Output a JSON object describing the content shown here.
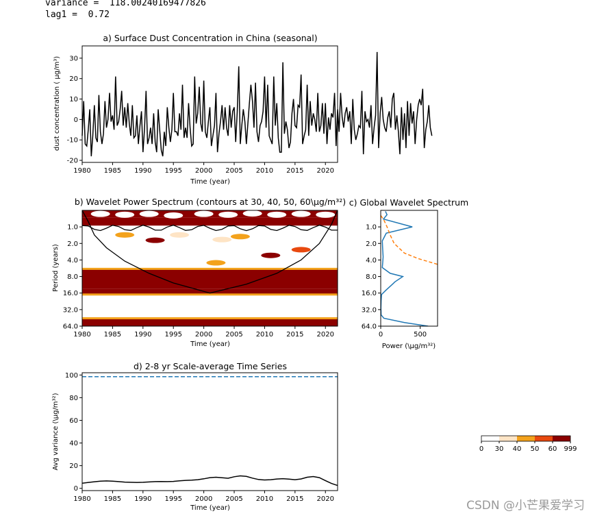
{
  "console": {
    "variance_line": "variance =  118.00240169477826",
    "lag1_line": "lag1 =  0.72"
  },
  "watermark": "CSDN @小芒果爱学习",
  "colors": {
    "line": "#000000",
    "blue": "#1f77b4",
    "orange": "#ff7f0e",
    "levels": [
      "#ffffff",
      "#fee4c5",
      "#f3a21c",
      "#e8490f",
      "#8b0000"
    ]
  },
  "chart_data": [
    {
      "id": "a",
      "type": "line",
      "title": "a) Surface Dust Concentration in China (seasonal)",
      "xlabel": "Time (year)",
      "ylabel": "dust concentration ( μg/m³)",
      "xlim": [
        1980,
        2022
      ],
      "ylim": [
        -21,
        36
      ],
      "xticks": [
        1980,
        1985,
        1990,
        1995,
        2000,
        2005,
        2010,
        2015,
        2020
      ],
      "yticks": [
        -20,
        -10,
        0,
        10,
        20,
        30
      ],
      "x_start": 1980,
      "x_step": 0.25,
      "values": [
        -8,
        9,
        -12,
        -13,
        -5,
        5,
        -18,
        -8,
        7,
        -9,
        -11,
        12,
        -6,
        -12,
        -7,
        9,
        -4,
        0,
        13,
        -1,
        2,
        -5,
        21,
        -3,
        -1,
        5,
        14,
        -3,
        6,
        -4,
        8,
        -2,
        -8,
        7,
        -9,
        -8,
        2,
        -12,
        -3,
        4,
        -16,
        -5,
        14,
        -12,
        -9,
        -4,
        -12,
        3,
        -11,
        -16,
        5,
        -5,
        -15,
        -18,
        -6,
        -13,
        6,
        -4,
        -11,
        -5,
        13,
        -6,
        -6,
        -8,
        3,
        -5,
        17,
        -9,
        -4,
        -9,
        8,
        -4,
        -13,
        -12,
        21,
        -2,
        3,
        16,
        -2,
        -6,
        19,
        -6,
        -9,
        -1,
        6,
        -13,
        -8,
        -3,
        13,
        -16,
        -7,
        -1,
        7,
        -5,
        6,
        -4,
        -8,
        7,
        -4,
        4,
        6,
        -11,
        4,
        26,
        -12,
        -3,
        5,
        -1,
        -12,
        -2,
        8,
        17,
        9,
        -4,
        18,
        -6,
        -11,
        -3,
        -1,
        4,
        21,
        -4,
        17,
        -8,
        -10,
        -12,
        21,
        -3,
        8,
        -9,
        -16,
        -16,
        28,
        -7,
        -1,
        -5,
        -14,
        -11,
        3,
        10,
        -3,
        -4,
        7,
        6,
        22,
        -12,
        -8,
        -5,
        17,
        -8,
        9,
        -3,
        3,
        0,
        -6,
        13,
        -6,
        -3,
        8,
        -7,
        8,
        -12,
        1,
        -5,
        3,
        1,
        13,
        -13,
        5,
        -6,
        13,
        1,
        -4,
        3,
        6,
        -1,
        4,
        -12,
        10,
        -5,
        -10,
        -7,
        -3,
        -4,
        14,
        -17,
        4,
        -1,
        0,
        -4,
        7,
        -12,
        -4,
        2,
        33,
        -14,
        3,
        11,
        0,
        -4,
        -6,
        1,
        4,
        -4,
        10,
        13,
        -5,
        2,
        -6,
        -17,
        6,
        -10,
        3,
        -14,
        9,
        -8,
        8,
        -2,
        4,
        -12,
        0,
        7,
        10,
        7,
        15,
        -14,
        -5,
        -1,
        7,
        -4,
        -8
      ]
    },
    {
      "id": "b",
      "type": "heatmap",
      "title": "b) Wavelet Power Spectrum (contours at 30, 40, 50, 60\\μg/m³²)",
      "xlabel": "Time (year)",
      "ylabel": "Period (years)",
      "xlim": [
        1980,
        2022
      ],
      "period_range": [
        0.5,
        64
      ],
      "xticks": [
        1980,
        1985,
        1990,
        1995,
        2000,
        2005,
        2010,
        2015,
        2020
      ],
      "yticks": [
        "1.0",
        "2.0",
        "4.0",
        "8.0",
        "16.0",
        "32.0",
        "64.0"
      ],
      "ytick_values": [
        1,
        2,
        4,
        8,
        16,
        32,
        64
      ],
      "levels": [
        0,
        30,
        40,
        50,
        60,
        999
      ],
      "bands": [
        {
          "p0": 0.5,
          "p1": 0.68,
          "level": 4
        },
        {
          "p0": 0.68,
          "p1": 0.95,
          "level": 4
        },
        {
          "p0": 0.95,
          "p1": 1.25,
          "level": 0
        },
        {
          "p0": 5.8,
          "p1": 13.5,
          "level": 4
        },
        {
          "p0": 13.5,
          "p1": 17,
          "level": 4
        },
        {
          "p0": 46,
          "p1": 64,
          "level": 4
        }
      ],
      "blobs": [
        {
          "x": 1983,
          "p": 0.58,
          "level": 0
        },
        {
          "x": 1987,
          "p": 0.6,
          "level": 0
        },
        {
          "x": 1991,
          "p": 0.58,
          "level": 0
        },
        {
          "x": 1995,
          "p": 0.62,
          "level": 0
        },
        {
          "x": 2000,
          "p": 0.58,
          "level": 0
        },
        {
          "x": 2004,
          "p": 0.6,
          "level": 0
        },
        {
          "x": 2008,
          "p": 0.57,
          "level": 0
        },
        {
          "x": 2012,
          "p": 0.6,
          "level": 0
        },
        {
          "x": 2016,
          "p": 0.58,
          "level": 0
        },
        {
          "x": 2020,
          "p": 0.6,
          "level": 0
        },
        {
          "x": 1992,
          "p": 1.75,
          "level": 4
        },
        {
          "x": 1996,
          "p": 1.4,
          "level": 1
        },
        {
          "x": 1987,
          "p": 1.4,
          "level": 2
        },
        {
          "x": 2006,
          "p": 1.5,
          "level": 2
        },
        {
          "x": 2011,
          "p": 3.3,
          "level": 4
        },
        {
          "x": 2016,
          "p": 2.6,
          "level": 3
        },
        {
          "x": 2003,
          "p": 1.7,
          "level": 1
        },
        {
          "x": 2002,
          "p": 4.5,
          "level": 2
        }
      ],
      "coi": [
        [
          1980,
          0.5
        ],
        [
          1981,
          0.8
        ],
        [
          1982,
          1.4
        ],
        [
          1984,
          2.4
        ],
        [
          1987,
          4.2
        ],
        [
          1991,
          7
        ],
        [
          1995,
          10.5
        ],
        [
          2001,
          16
        ],
        [
          2007,
          11
        ],
        [
          2012,
          7
        ],
        [
          2016,
          4
        ],
        [
          2019,
          2
        ],
        [
          2021,
          0.9
        ],
        [
          2022,
          0.5
        ]
      ]
    },
    {
      "id": "c",
      "type": "line",
      "title": "c) Global Wavelet Spectrum",
      "xlabel": "Power (\\μg/m³²)",
      "xlim": [
        0,
        720
      ],
      "xticks": [
        0,
        500
      ],
      "yticks": [
        "1.0",
        "2.0",
        "4.0",
        "8.0",
        "16.0",
        "32.0",
        "64.0"
      ],
      "ytick_values": [
        1,
        2,
        4,
        8,
        16,
        32,
        64
      ],
      "global_spectrum": [
        [
          60,
          0.52
        ],
        [
          80,
          0.6
        ],
        [
          35,
          0.72
        ],
        [
          400,
          1.0
        ],
        [
          70,
          1.3
        ],
        [
          20,
          1.8
        ],
        [
          25,
          2.6
        ],
        [
          30,
          3.5
        ],
        [
          25,
          4.5
        ],
        [
          20,
          5.5
        ],
        [
          120,
          7
        ],
        [
          280,
          8
        ],
        [
          180,
          10
        ],
        [
          150,
          11
        ],
        [
          70,
          14
        ],
        [
          10,
          17
        ],
        [
          5,
          22
        ],
        [
          3,
          30
        ],
        [
          5,
          40
        ],
        [
          40,
          46
        ],
        [
          300,
          55
        ],
        [
          600,
          64
        ]
      ],
      "significance": [
        [
          0,
          0.62
        ],
        [
          40,
          0.75
        ],
        [
          80,
          1.0
        ],
        [
          120,
          1.4
        ],
        [
          170,
          2.0
        ],
        [
          300,
          3.0
        ],
        [
          480,
          3.8
        ],
        [
          720,
          4.8
        ]
      ]
    },
    {
      "id": "d",
      "type": "line",
      "title": "d) 2-8 yr Scale-average Time Series",
      "xlabel": "Time (year)",
      "ylabel": "Avg variance (\\μg/m³²)",
      "xlim": [
        1980,
        2022
      ],
      "ylim": [
        -2,
        102
      ],
      "xticks": [
        1980,
        1985,
        1990,
        1995,
        2000,
        2005,
        2010,
        2015,
        2020
      ],
      "yticks": [
        0,
        20,
        40,
        60,
        80,
        100
      ],
      "x": [
        1980,
        1981,
        1982,
        1983,
        1984,
        1985,
        1986,
        1987,
        1988,
        1989,
        1990,
        1991,
        1992,
        1993,
        1994,
        1995,
        1996,
        1997,
        1998,
        1999,
        2000,
        2001,
        2002,
        2003,
        2004,
        2005,
        2006,
        2007,
        2008,
        2009,
        2010,
        2011,
        2012,
        2013,
        2014,
        2015,
        2016,
        2017,
        2018,
        2019,
        2020,
        2021,
        2022
      ],
      "values": [
        4.5,
        5.2,
        5.8,
        6.3,
        6.5,
        6.3,
        5.9,
        5.5,
        5.3,
        5.2,
        5.3,
        5.6,
        5.9,
        6.0,
        5.9,
        6.1,
        6.6,
        7.0,
        7.2,
        7.6,
        8.4,
        9.4,
        9.8,
        9.3,
        8.9,
        10.2,
        11.0,
        10.5,
        9.0,
        7.8,
        7.4,
        7.6,
        8.2,
        8.5,
        8.1,
        7.6,
        8.3,
        9.8,
        10.4,
        9.4,
        6.8,
        4.3,
        2.5
      ],
      "significance_level": 98.5
    }
  ],
  "colorbar": {
    "ticks": [
      "0",
      "30",
      "40",
      "50",
      "60",
      "999"
    ]
  }
}
